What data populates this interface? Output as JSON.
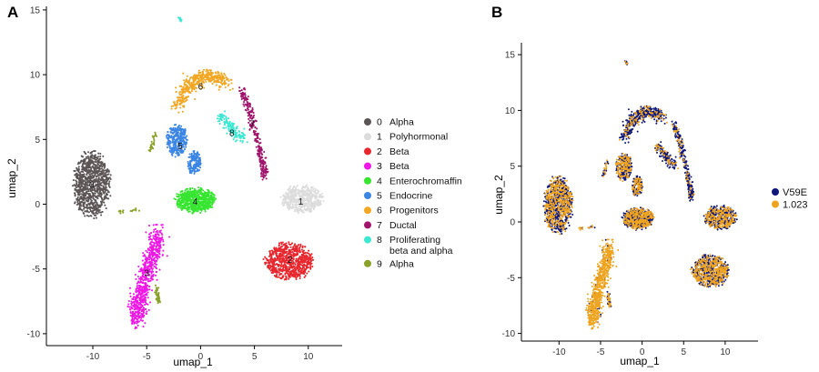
{
  "chart_data": [
    {
      "panel_label": "A",
      "type": "scatter",
      "xlabel": "umap_1",
      "ylabel": "umap_2",
      "xlim": [
        -14,
        13
      ],
      "ylim": [
        -10.5,
        15.5
      ],
      "x_ticks": [
        -10,
        -5,
        0,
        5,
        10
      ],
      "y_ticks": [
        -10,
        -5,
        0,
        5,
        10,
        15
      ],
      "grid": false,
      "legend_position": "right",
      "legend": [
        {
          "cluster": "0",
          "label": "Alpha",
          "color": "#5c5556"
        },
        {
          "cluster": "1",
          "label": "Polyhormonal",
          "color": "#dcdcdc"
        },
        {
          "cluster": "2",
          "label": "Beta",
          "color": "#e8262d"
        },
        {
          "cluster": "3",
          "label": "Beta",
          "color": "#ee17e6"
        },
        {
          "cluster": "4",
          "label": "Enterochromaffin",
          "color": "#35e52f"
        },
        {
          "cluster": "5",
          "label": "Endocrine",
          "color": "#3b86e4"
        },
        {
          "cluster": "6",
          "label": "Progenitors",
          "color": "#f2a622"
        },
        {
          "cluster": "7",
          "label": "Ductal",
          "color": "#a0146b"
        },
        {
          "cluster": "8",
          "label": "Proliferating\nbeta and alpha",
          "color": "#3ce8d2"
        },
        {
          "cluster": "9",
          "label": "Alpha",
          "color": "#8aa128"
        }
      ],
      "clusters": [
        {
          "id": "0",
          "center": [
            -10.1,
            1.5
          ],
          "spread": [
            1.9,
            2.7
          ]
        },
        {
          "id": "1",
          "center": [
            9.3,
            0.2
          ],
          "spread": [
            2.1,
            1.2
          ]
        },
        {
          "id": "2",
          "center": [
            8.3,
            -4.3
          ],
          "spread": [
            2.4,
            1.5
          ]
        },
        {
          "id": "3",
          "center": [
            -5.0,
            -5.3
          ],
          "spread": [
            0.9,
            2.5
          ]
        },
        {
          "id": "4",
          "center": [
            -0.5,
            0.2
          ],
          "spread": [
            2.0,
            1.0
          ]
        },
        {
          "id": "5",
          "center": [
            -1.9,
            4.5
          ],
          "spread": [
            1.4,
            1.4
          ]
        },
        {
          "id": "6",
          "center": [
            0.0,
            9.1
          ],
          "spread": [
            1.9,
            0.9
          ]
        },
        {
          "id": "7",
          "center": [
            4.8,
            6.2
          ],
          "spread": [
            0.6,
            2.4
          ]
        },
        {
          "id": "8",
          "center": [
            2.9,
            5.5
          ],
          "spread": [
            1.1,
            0.7
          ]
        },
        {
          "id": "9",
          "center": [
            -4.2,
            -7.0
          ],
          "spread": [
            0.3,
            0.5
          ]
        }
      ]
    },
    {
      "panel_label": "B",
      "type": "scatter",
      "xlabel": "umap_1",
      "ylabel": "umap_2",
      "xlim": [
        -14,
        13
      ],
      "ylim": [
        -10.5,
        15.5
      ],
      "x_ticks": [
        -10,
        -5,
        0,
        5,
        10
      ],
      "y_ticks": [
        -10,
        -5,
        0,
        5,
        10,
        15
      ],
      "grid": false,
      "legend_position": "right",
      "legend": [
        {
          "label": "V59E",
          "color": "#0e1677"
        },
        {
          "label": "1.023",
          "color": "#efa41f"
        }
      ]
    }
  ]
}
